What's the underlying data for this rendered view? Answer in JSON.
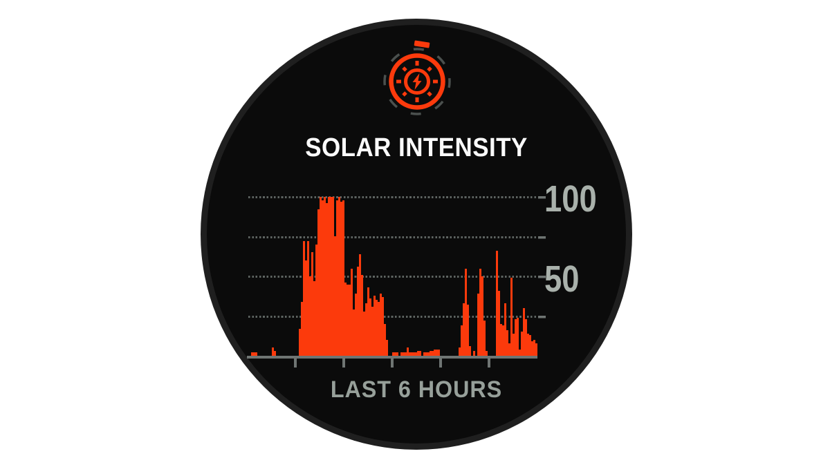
{
  "app": {
    "type": "smartwatch-glance",
    "screen_title": "SOLAR INTENSITY"
  },
  "colors": {
    "background": "#ffffff",
    "bezel": "#1f1f1f",
    "screen": "#0b0b0b",
    "accent": "#fc3a0c",
    "title": "#fafafa",
    "grid": "#5e6462",
    "axis": "#6f7573",
    "y_labels": "#a9b1ab",
    "footer": "#97a09a",
    "icon_dash_ring": "#4b504e"
  },
  "header": {
    "title": "SOLAR INTENSITY",
    "icon": "solar-intensity-stopwatch-icon"
  },
  "footer": {
    "label": "LAST 6 HOURS"
  },
  "y_axis": {
    "labels": [
      "100",
      "50"
    ]
  },
  "chart_data": {
    "type": "bar",
    "title": "SOLAR INTENSITY",
    "xlabel": "LAST 6 HOURS",
    "ylabel": "",
    "ylim": [
      0,
      100
    ],
    "x_span_hours": 6,
    "x_interior_ticks": 5,
    "gridlines_y": [
      25,
      50,
      75,
      100
    ],
    "ytick_labels": [
      {
        "value": 100,
        "label": "100"
      },
      {
        "value": 50,
        "label": "50"
      }
    ],
    "legend": "none",
    "grid_style": "dotted-horizontal",
    "values": [
      0,
      0,
      2,
      2,
      2,
      0,
      0,
      0,
      0,
      0,
      0,
      0,
      5,
      3,
      0,
      0,
      0,
      0,
      0,
      0,
      0,
      0,
      0,
      0,
      0,
      17,
      34,
      72,
      60,
      72,
      50,
      65,
      47,
      70,
      92,
      100,
      98,
      100,
      96,
      100,
      100,
      100,
      75,
      98,
      100,
      97,
      98,
      46,
      45,
      45,
      55,
      29,
      39,
      56,
      64,
      51,
      28,
      33,
      43,
      36,
      31,
      38,
      35,
      34,
      39,
      37,
      20,
      10,
      0,
      0,
      2,
      2,
      2,
      0,
      2,
      2,
      2,
      5,
      2,
      2,
      2,
      2,
      3,
      3,
      0,
      2,
      2,
      2,
      3,
      3,
      4,
      4,
      4,
      0,
      0,
      0,
      0,
      0,
      0,
      0,
      0,
      0,
      5,
      19,
      33,
      55,
      32,
      6,
      0,
      3,
      0,
      39,
      55,
      50,
      22,
      3,
      0,
      0,
      0,
      0,
      66,
      41,
      20,
      19,
      33,
      16,
      8,
      49,
      14,
      23,
      24,
      4,
      15,
      30,
      23,
      14,
      13,
      9,
      10,
      8
    ]
  }
}
